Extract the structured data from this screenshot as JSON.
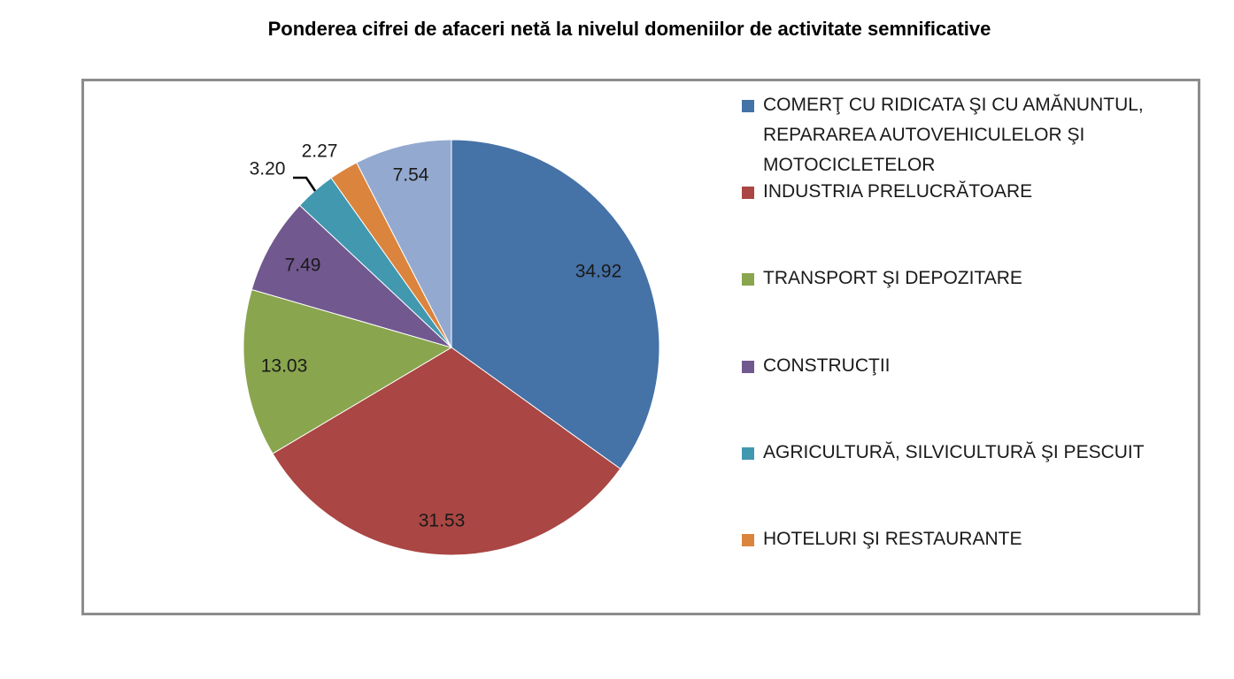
{
  "chart_data": {
    "type": "pie",
    "title": "Ponderea cifrei de afaceri netă la nivelul domeniilor de activitate semnificative",
    "slices": [
      {
        "label": "COMERŢ CU RIDICATA ŞI CU AMĂNUNTUL, REPARAREA AUTOVEHICULELOR ŞI MOTOCICLETELOR",
        "value": 34.92,
        "display": "34.92",
        "color": "#4572A7"
      },
      {
        "label": "INDUSTRIA PRELUCRĂTOARE",
        "value": 31.53,
        "display": "31.53",
        "color": "#AA4643"
      },
      {
        "label": "TRANSPORT ŞI DEPOZITARE",
        "value": 13.03,
        "display": "13.03",
        "color": "#89A54E"
      },
      {
        "label": "CONSTRUCŢII",
        "value": 7.49,
        "display": "7.49",
        "color": "#71588F"
      },
      {
        "label": "AGRICULTURĂ, SILVICULTURĂ ŞI PESCUIT",
        "value": 3.2,
        "display": "3.20",
        "color": "#4198AF"
      },
      {
        "label": "HOTELURI ŞI RESTAURANTE",
        "value": 2.27,
        "display": "2.27",
        "color": "#DB843D"
      },
      {
        "label": "",
        "value": 7.54,
        "display": "7.54",
        "color": "#93A9CF"
      }
    ],
    "legend_position": "right",
    "data_labels": true
  }
}
